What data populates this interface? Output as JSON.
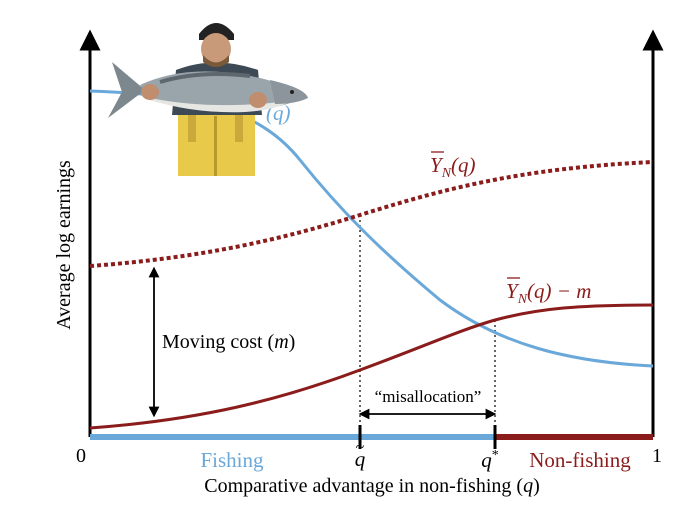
{
  "axes": {
    "y_label": "Average log earnings",
    "x_label": "Comparative advantage in non-fishing (",
    "x_label_var": "q",
    "x_label_close": ")",
    "origin_label": "0",
    "end_label": "1"
  },
  "regions": {
    "fishing": "Fishing",
    "nonfishing": "Non-fishing"
  },
  "markers": {
    "q_tilde": "q",
    "q_star": "q",
    "q_star_sup": "*"
  },
  "curve_labels": {
    "fishing_suffix": "(q)",
    "nonfishing_Y": "Y",
    "nonfishing_sub": "N",
    "nonfishing_arg": "(q)",
    "net_Y": "Y",
    "net_sub": "N",
    "net_arg": "(q) − m"
  },
  "annotations": {
    "moving_cost_text": "Moving cost (",
    "moving_cost_var": "m",
    "moving_cost_close": ")",
    "misallocation": "“misallocation”"
  },
  "photo": {
    "description_icon": "fisherman-holding-salmon"
  },
  "colors": {
    "fishing": "#6aa8da",
    "nonfishing": "#8b1c1c",
    "axis": "#000000"
  }
}
